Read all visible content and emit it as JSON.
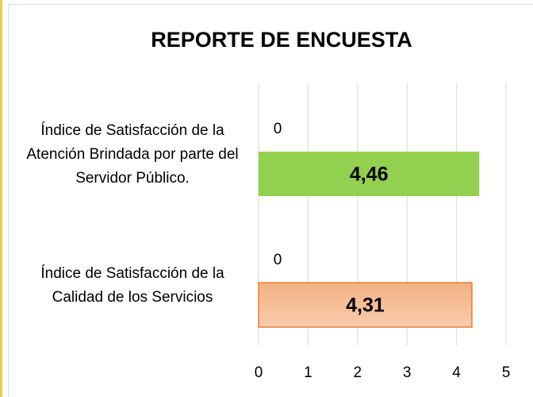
{
  "chart_data": {
    "type": "bar",
    "orientation": "horizontal",
    "title": "REPORTE DE ENCUESTA",
    "categories": [
      "Índice de Satisfacción de la Atención Brindada por parte del Servidor Público.",
      "Índice de Satisfacción de la Calidad de los Servicios"
    ],
    "series": [
      {
        "color": "#ffffff",
        "values": [
          0,
          0
        ]
      },
      {
        "colors": [
          "#92d050",
          "#f4b183"
        ],
        "values": [
          4.46,
          4.31
        ],
        "value_labels": [
          "4,46",
          "4,31"
        ]
      }
    ],
    "xlim": [
      0,
      5
    ],
    "xticks": [
      0,
      1,
      2,
      3,
      4,
      5
    ],
    "grid": true
  }
}
